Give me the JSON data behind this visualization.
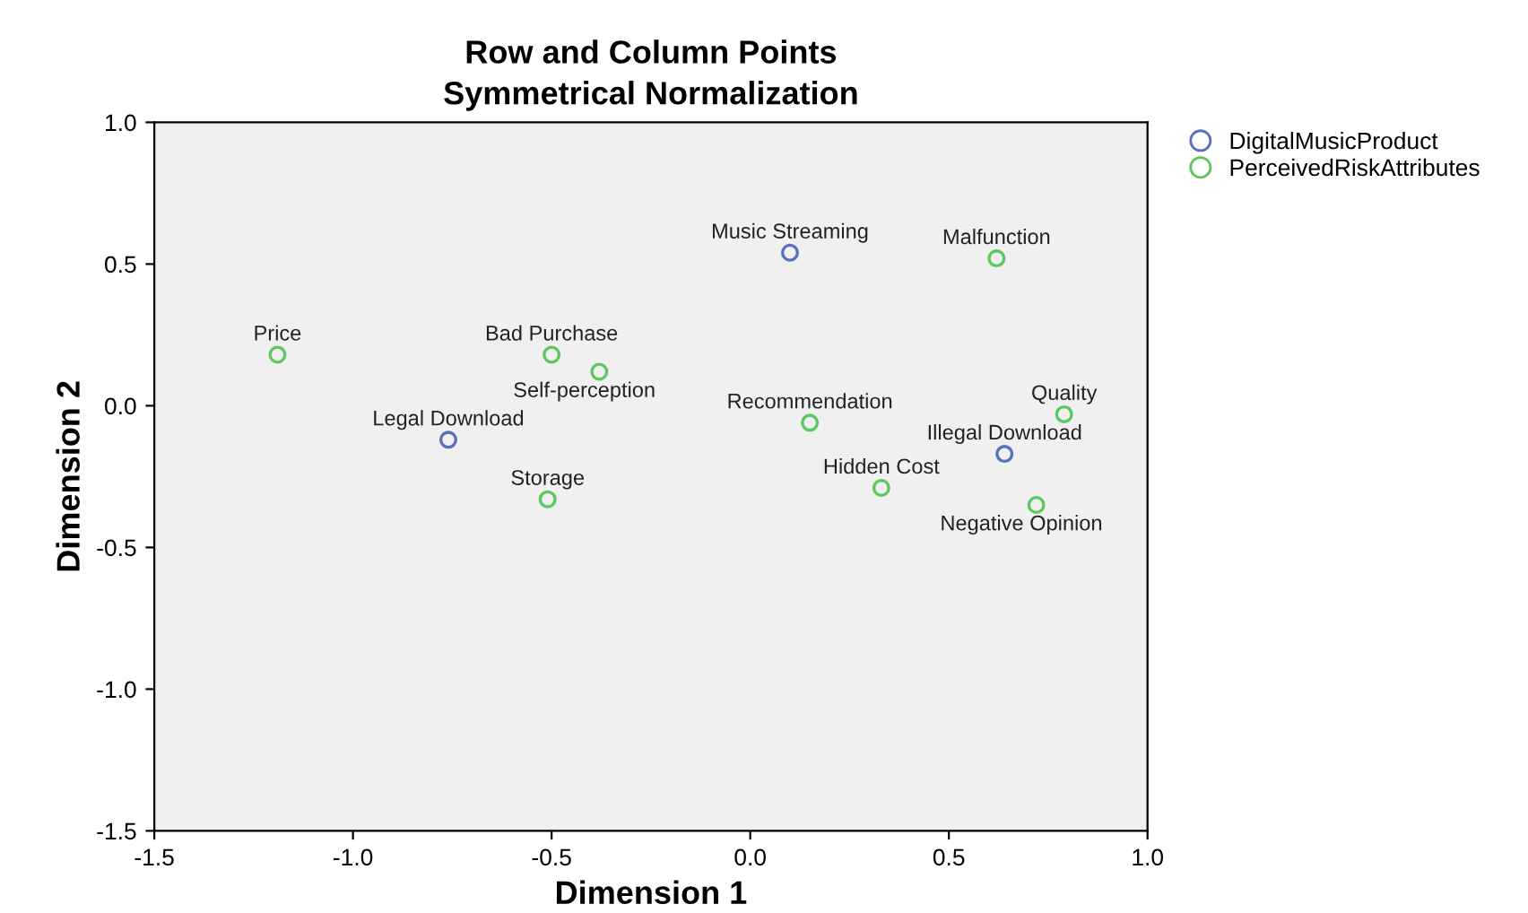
{
  "chart_data": {
    "type": "scatter",
    "title": "Row and Column Points",
    "subtitle": "Symmetrical Normalization",
    "xlabel": "Dimension 1",
    "ylabel": "Dimension 2",
    "series": [
      {
        "name": "DigitalMusicProduct",
        "color": "#5b6fbf",
        "x": [
          0.1,
          -0.76,
          0.64
        ],
        "values": [
          0.54,
          -0.12,
          -0.17
        ]
      },
      {
        "name": "PerceivedRiskAttributes",
        "color": "#5cc75c",
        "x": [
          0.62,
          -1.19,
          -0.5,
          -0.38,
          0.15,
          0.79,
          0.33,
          -0.51,
          0.72
        ],
        "values": [
          0.52,
          0.18,
          0.18,
          0.12,
          -0.06,
          -0.03,
          -0.29,
          -0.33,
          -0.35
        ]
      }
    ],
    "annotations": [
      {
        "text": "Music Streaming",
        "x": 0.1,
        "y": 0.54
      },
      {
        "text": "Legal Download",
        "x": -0.76,
        "y": -0.12
      },
      {
        "text": "Illegal Download",
        "x": 0.64,
        "y": -0.17
      },
      {
        "text": "Malfunction",
        "x": 0.62,
        "y": 0.52
      },
      {
        "text": "Price",
        "x": -1.19,
        "y": 0.18
      },
      {
        "text": "Bad Purchase",
        "x": -0.5,
        "y": 0.18
      },
      {
        "text": "Self-perception",
        "x": -0.38,
        "y": 0.12
      },
      {
        "text": "Recommendation",
        "x": 0.15,
        "y": -0.06
      },
      {
        "text": "Quality",
        "x": 0.79,
        "y": -0.03
      },
      {
        "text": "Hidden Cost",
        "x": 0.33,
        "y": -0.29
      },
      {
        "text": "Storage",
        "x": -0.51,
        "y": -0.33
      },
      {
        "text": "Negative Opinion",
        "x": 0.72,
        "y": -0.35
      }
    ],
    "xlim": [
      -1.5,
      1.0
    ],
    "ylim": [
      -1.5,
      1.0
    ],
    "xticks": [
      {
        "value": -1.5,
        "label": "-1.5"
      },
      {
        "value": -1.0,
        "label": "-1.0"
      },
      {
        "value": -0.5,
        "label": "-0.5"
      },
      {
        "value": 0.0,
        "label": "0.0"
      },
      {
        "value": 0.5,
        "label": "0.5"
      },
      {
        "value": 1.0,
        "label": "1.0"
      }
    ],
    "yticks": [
      {
        "value": -1.5,
        "label": "-1.5"
      },
      {
        "value": -1.0,
        "label": "-1.0"
      },
      {
        "value": -0.5,
        "label": "-0.5"
      },
      {
        "value": 0.0,
        "label": "0.0"
      },
      {
        "value": 0.5,
        "label": "0.5"
      },
      {
        "value": 1.0,
        "label": "1.0"
      }
    ],
    "legend": "top right",
    "marker": "circle",
    "grid": false
  }
}
